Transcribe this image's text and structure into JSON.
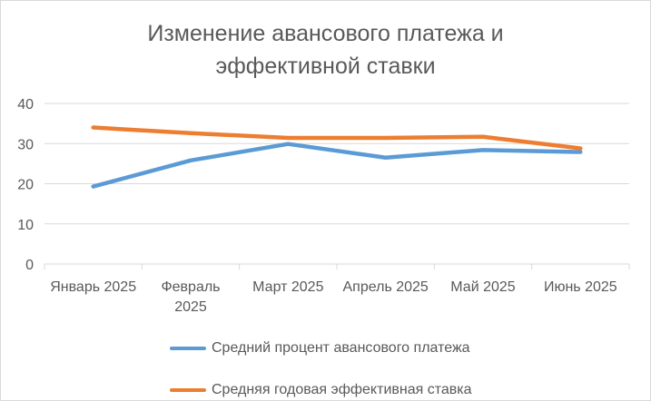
{
  "chart_data": {
    "type": "line",
    "title_lines": [
      "Изменение авансового платежа и",
      "эффективной ставки"
    ],
    "xlabel": "",
    "ylabel": "",
    "categories": [
      "Январь 2025",
      "Февраль 2025",
      "Март 2025",
      "Апрель 2025",
      "Май 2025",
      "Июнь 2025"
    ],
    "category_lines": [
      [
        "Январь 2025"
      ],
      [
        "Февраль",
        "2025"
      ],
      [
        "Март 2025"
      ],
      [
        "Апрель 2025"
      ],
      [
        "Май 2025"
      ],
      [
        "Июнь 2025"
      ]
    ],
    "ylim": [
      0,
      40
    ],
    "yticks": [
      0,
      10,
      20,
      30,
      40
    ],
    "grid": true,
    "legend_position": "bottom",
    "series": [
      {
        "name": "Средний процент авансового платежа",
        "color": "#5b9bd5",
        "values": [
          19.3,
          25.8,
          29.9,
          26.5,
          28.4,
          27.9
        ]
      },
      {
        "name": "Средняя годовая эффективная ставка",
        "color": "#ed7d31",
        "values": [
          34.0,
          32.6,
          31.4,
          31.4,
          31.7,
          28.8
        ]
      }
    ]
  }
}
